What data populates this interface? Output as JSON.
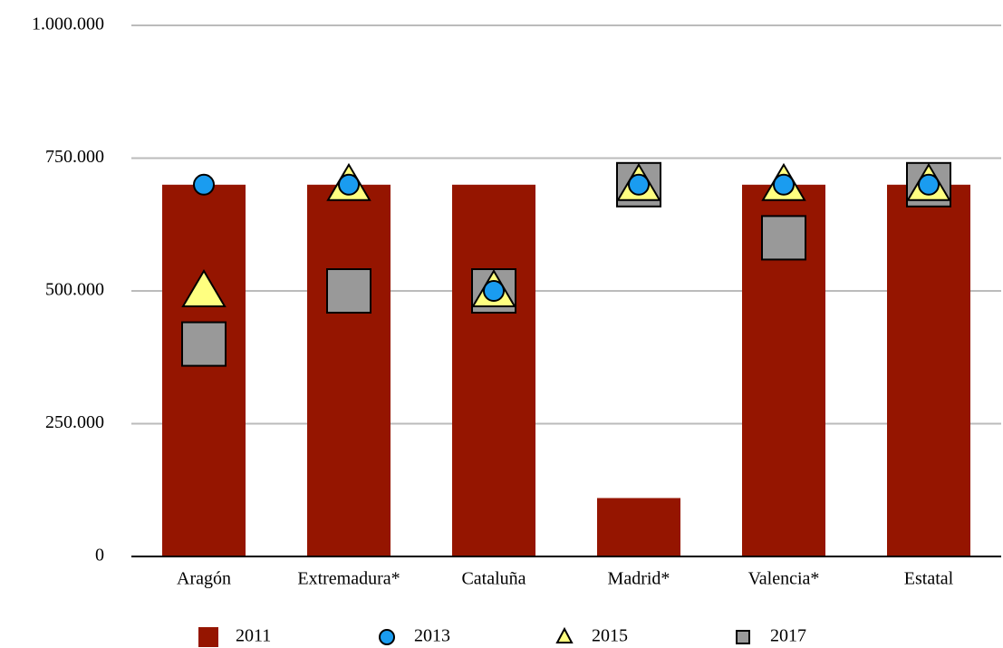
{
  "chart_data": {
    "type": "bar",
    "categories": [
      "Aragón",
      "Extremadura*",
      "Cataluña",
      "Madrid*",
      "Valencia*",
      "Estatal"
    ],
    "series": [
      {
        "name": "2011",
        "marker": "bar",
        "color": "#951500",
        "values": [
          700000,
          700000,
          700000,
          110000,
          700000,
          700000
        ]
      },
      {
        "name": "2013",
        "marker": "circle",
        "color": "#1a9cf0",
        "values": [
          700000,
          700000,
          500000,
          700000,
          700000,
          700000
        ]
      },
      {
        "name": "2015",
        "marker": "triangle",
        "color": "#ffff80",
        "values": [
          500000,
          700000,
          500000,
          700000,
          700000,
          700000
        ]
      },
      {
        "name": "2017",
        "marker": "square",
        "color": "#999999",
        "values": [
          400000,
          500000,
          500000,
          700000,
          600000,
          700000
        ]
      }
    ],
    "ylim": [
      0,
      1000000
    ],
    "yticks": [
      0,
      {
        "value": 250000,
        "label": "250.000"
      },
      {
        "value": 500000,
        "label": "500.000"
      },
      {
        "value": 750000,
        "label": "750.000"
      },
      {
        "value": 1000000,
        "label": "1.000.000"
      }
    ],
    "grid": true
  }
}
